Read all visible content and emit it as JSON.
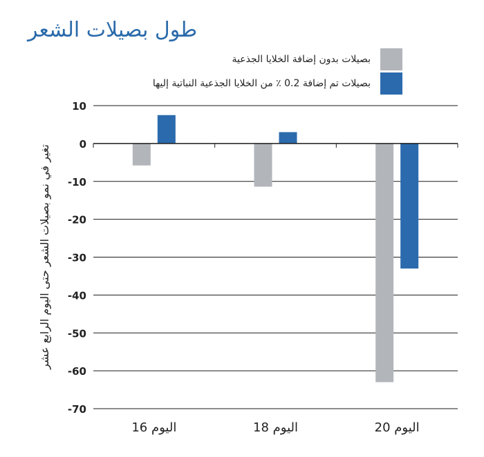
{
  "chart_data": {
    "type": "bar",
    "title": "طول بصيلات الشعر",
    "ylabel": "تغير في نمو بصيلات الشعر حتى اليوم الرابع عشر",
    "xlabel": "",
    "categories": [
      "اليوم 16",
      "اليوم 18",
      "اليوم 20"
    ],
    "series": [
      {
        "name": "بصيلات بدون إضافة الخلايا الجذعية",
        "color": "#b2b6bb",
        "values": [
          -5.8,
          -11.4,
          -63
        ]
      },
      {
        "name": "بصيلات تم إضافة 0.2 ٪ من الخلايا الجذعية النباتية إليها",
        "color": "#2b6aad",
        "values": [
          7.5,
          3,
          -33
        ]
      }
    ],
    "ylim": [
      -70,
      10
    ],
    "yticks": [
      "10",
      "0",
      "-10",
      "-20",
      "-30",
      "-40",
      "-50",
      "-60",
      "-70"
    ],
    "grid": true,
    "legend": "top-right"
  }
}
